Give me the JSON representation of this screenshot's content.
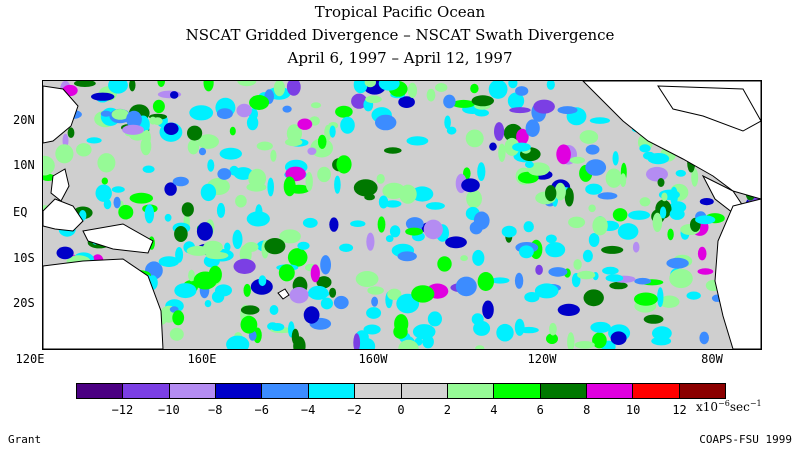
{
  "title": {
    "line1": "Tropical Pacific Ocean",
    "line2": "NSCAT Gridded Divergence – NSCAT Swath Divergence",
    "line3": "April 6, 1997 – April 12, 1997"
  },
  "latitude_labels": [
    "20N",
    "10N",
    "EQ",
    "10S",
    "20S"
  ],
  "longitude_labels": [
    "120E",
    "160E",
    "160W",
    "120W",
    "80W"
  ],
  "colorbar": {
    "colors": [
      "#4b0082",
      "#7b3fe4",
      "#b48cf2",
      "#0000c8",
      "#3c8cff",
      "#00f0ff",
      "#d3d3d3",
      "#d3d3d3",
      "#96fa96",
      "#00ff00",
      "#007800",
      "#e000e0",
      "#ff0000",
      "#8b0000"
    ],
    "tick_labels": [
      "−12",
      "−10",
      "−8",
      "−6",
      "−4",
      "−2",
      "0",
      "2",
      "4",
      "6",
      "8",
      "10",
      "12"
    ],
    "units_prefix": "x10",
    "units_exponent": "−6",
    "units_suffix": "sec",
    "units_suffix_exponent": "−1"
  },
  "credits": {
    "left": "Grant",
    "right": "COAPS-FSU 1999"
  }
}
